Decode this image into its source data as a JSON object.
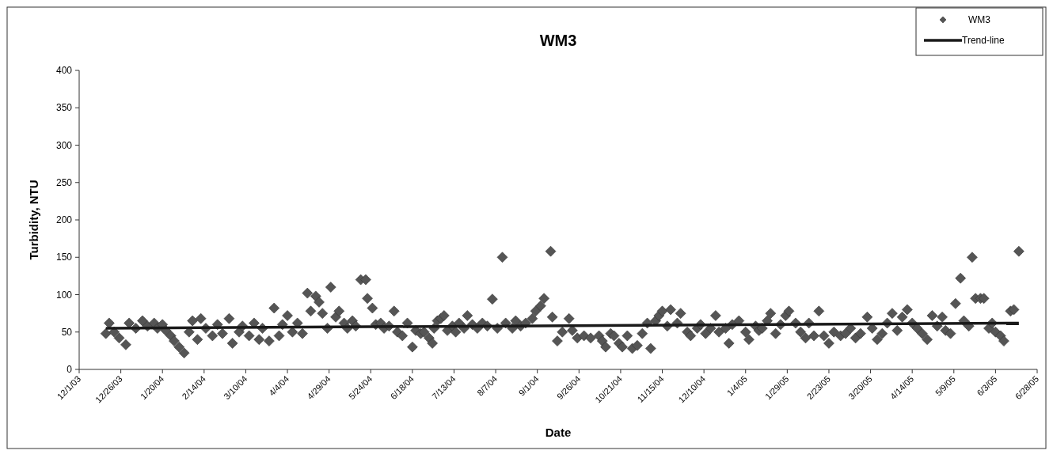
{
  "chart_data": {
    "type": "scatter",
    "title": "WM3",
    "xlabel": "Date",
    "ylabel": "Turbidity, NTU",
    "xlim": [
      "2003-12-01",
      "2005-06-28"
    ],
    "xticks": [
      {
        "value": "2003-12-01",
        "label": "12/1/03"
      },
      {
        "value": "2003-12-26",
        "label": "12/26/03"
      },
      {
        "value": "2004-01-20",
        "label": "1/20/04"
      },
      {
        "value": "2004-02-14",
        "label": "2/14/04"
      },
      {
        "value": "2004-03-10",
        "label": "3/10/04"
      },
      {
        "value": "2004-04-04",
        "label": "4/4/04"
      },
      {
        "value": "2004-04-29",
        "label": "4/29/04"
      },
      {
        "value": "2004-05-24",
        "label": "5/24/04"
      },
      {
        "value": "2004-06-18",
        "label": "6/18/04"
      },
      {
        "value": "2004-07-13",
        "label": "7/13/04"
      },
      {
        "value": "2004-08-07",
        "label": "8/7/04"
      },
      {
        "value": "2004-09-01",
        "label": "9/1/04"
      },
      {
        "value": "2004-09-26",
        "label": "9/26/04"
      },
      {
        "value": "2004-10-21",
        "label": "10/21/04"
      },
      {
        "value": "2004-11-15",
        "label": "11/15/04"
      },
      {
        "value": "2004-12-10",
        "label": "12/10/04"
      },
      {
        "value": "2005-01-04",
        "label": "1/4/05"
      },
      {
        "value": "2005-01-29",
        "label": "1/29/05"
      },
      {
        "value": "2005-02-23",
        "label": "2/23/05"
      },
      {
        "value": "2005-03-20",
        "label": "3/20/05"
      },
      {
        "value": "2005-04-14",
        "label": "4/14/05"
      },
      {
        "value": "2005-05-09",
        "label": "5/9/05"
      },
      {
        "value": "2005-06-03",
        "label": "6/3/05"
      },
      {
        "value": "2005-06-28",
        "label": "6/28/05"
      }
    ],
    "ylim": [
      0,
      400
    ],
    "yticks": [
      0,
      50,
      100,
      150,
      200,
      250,
      300,
      350,
      400
    ],
    "grid": false,
    "legend": "top right",
    "series": [
      {
        "name": "WM3",
        "color": "#555555",
        "marker": "diamond",
        "x": [
          "2003-12-17",
          "2003-12-19",
          "2003-12-22",
          "2003-12-25",
          "2003-12-29",
          "2003-12-31",
          "2004-01-04",
          "2004-01-08",
          "2004-01-11",
          "2004-01-15",
          "2004-01-17",
          "2004-01-20",
          "2004-01-22",
          "2004-01-25",
          "2004-01-27",
          "2004-01-30",
          "2004-02-02",
          "2004-02-05",
          "2004-02-07",
          "2004-02-10",
          "2004-02-12",
          "2004-02-15",
          "2004-02-19",
          "2004-02-22",
          "2004-02-25",
          "2004-02-29",
          "2004-03-02",
          "2004-03-06",
          "2004-03-08",
          "2004-03-12",
          "2004-03-15",
          "2004-03-18",
          "2004-03-20",
          "2004-03-24",
          "2004-03-27",
          "2004-03-30",
          "2004-04-01",
          "2004-04-04",
          "2004-04-07",
          "2004-04-10",
          "2004-04-13",
          "2004-04-16",
          "2004-04-18",
          "2004-04-21",
          "2004-04-23",
          "2004-04-25",
          "2004-04-28",
          "2004-04-30",
          "2004-05-03",
          "2004-05-05",
          "2004-05-08",
          "2004-05-10",
          "2004-05-13",
          "2004-05-15",
          "2004-05-18",
          "2004-05-21",
          "2004-05-22",
          "2004-05-25",
          "2004-05-27",
          "2004-05-30",
          "2004-06-01",
          "2004-06-04",
          "2004-06-07",
          "2004-06-09",
          "2004-06-12",
          "2004-06-15",
          "2004-06-18",
          "2004-06-20",
          "2004-06-23",
          "2004-06-25",
          "2004-06-28",
          "2004-06-30",
          "2004-07-01",
          "2004-07-03",
          "2004-07-05",
          "2004-07-07",
          "2004-07-09",
          "2004-07-12",
          "2004-07-14",
          "2004-07-16",
          "2004-07-19",
          "2004-07-21",
          "2004-07-24",
          "2004-07-27",
          "2004-07-30",
          "2004-08-02",
          "2004-08-05",
          "2004-08-08",
          "2004-08-11",
          "2004-08-13",
          "2004-08-17",
          "2004-08-19",
          "2004-08-22",
          "2004-08-25",
          "2004-08-29",
          "2004-08-31",
          "2004-09-03",
          "2004-09-05",
          "2004-09-09",
          "2004-09-10",
          "2004-09-13",
          "2004-09-16",
          "2004-09-20",
          "2004-09-22",
          "2004-09-25",
          "2004-09-29",
          "2004-10-03",
          "2004-10-08",
          "2004-10-10",
          "2004-10-12",
          "2004-10-15",
          "2004-10-17",
          "2004-10-20",
          "2004-10-22",
          "2004-10-25",
          "2004-10-28",
          "2004-10-31",
          "2004-11-03",
          "2004-11-06",
          "2004-11-08",
          "2004-11-11",
          "2004-11-13",
          "2004-11-15",
          "2004-11-18",
          "2004-11-20",
          "2004-11-24",
          "2004-11-26",
          "2004-11-30",
          "2004-12-02",
          "2004-12-06",
          "2004-12-08",
          "2004-12-11",
          "2004-12-14",
          "2004-12-17",
          "2004-12-19",
          "2004-12-23",
          "2004-12-25",
          "2004-12-27",
          "2004-12-31",
          "2005-01-04",
          "2005-01-06",
          "2005-01-10",
          "2005-01-12",
          "2005-01-14",
          "2005-01-17",
          "2005-01-19",
          "2005-01-22",
          "2005-01-25",
          "2005-01-28",
          "2005-01-30",
          "2005-02-03",
          "2005-02-06",
          "2005-02-09",
          "2005-02-11",
          "2005-02-14",
          "2005-02-17",
          "2005-02-20",
          "2005-02-23",
          "2005-02-26",
          "2005-03-02",
          "2005-03-05",
          "2005-03-08",
          "2005-03-11",
          "2005-03-14",
          "2005-03-18",
          "2005-03-21",
          "2005-03-24",
          "2005-03-27",
          "2005-03-30",
          "2005-04-02",
          "2005-04-05",
          "2005-04-08",
          "2005-04-11",
          "2005-04-14",
          "2005-04-17",
          "2005-04-20",
          "2005-04-23",
          "2005-04-26",
          "2005-04-29",
          "2005-05-02",
          "2005-05-04",
          "2005-05-07",
          "2005-05-10",
          "2005-05-13",
          "2005-05-15",
          "2005-05-18",
          "2005-05-20",
          "2005-05-22",
          "2005-05-25",
          "2005-05-27",
          "2005-05-30",
          "2005-06-01",
          "2005-06-03",
          "2005-06-06",
          "2005-06-08",
          "2005-06-12",
          "2005-06-14",
          "2005-06-17"
        ],
        "values": [
          48,
          62,
          50,
          42,
          33,
          62,
          55,
          65,
          58,
          62,
          55,
          60,
          52,
          45,
          38,
          30,
          22,
          50,
          65,
          40,
          68,
          55,
          45,
          60,
          48,
          68,
          35,
          50,
          58,
          45,
          62,
          40,
          55,
          38,
          82,
          45,
          60,
          72,
          50,
          62,
          48,
          102,
          78,
          98,
          90,
          75,
          55,
          110,
          70,
          78,
          62,
          55,
          65,
          58,
          120,
          120,
          95,
          82,
          60,
          62,
          55,
          58,
          78,
          50,
          45,
          62,
          30,
          52,
          48,
          50,
          42,
          35,
          55,
          65,
          68,
          72,
          52,
          58,
          50,
          62,
          55,
          72,
          60,
          55,
          62,
          58,
          94,
          55,
          150,
          62,
          55,
          65,
          58,
          62,
          68,
          78,
          85,
          95,
          158,
          70,
          38,
          50,
          68,
          52,
          42,
          45,
          42,
          45,
          38,
          30,
          48,
          45,
          35,
          30,
          45,
          28,
          32,
          48,
          62,
          28,
          65,
          72,
          78,
          58,
          80,
          62,
          75,
          50,
          45,
          55,
          60,
          48,
          55,
          72,
          50,
          55,
          35,
          60,
          65,
          50,
          40,
          58,
          52,
          55,
          65,
          75,
          48,
          60,
          72,
          78,
          62,
          50,
          42,
          62,
          45,
          78,
          45,
          35,
          50,
          45,
          48,
          55,
          42,
          48,
          70,
          55,
          40,
          48,
          62,
          75,
          52,
          70,
          80,
          62,
          55,
          48,
          40,
          72,
          58,
          70,
          52,
          48,
          88,
          122,
          65,
          58,
          150,
          95,
          95,
          95,
          55,
          62,
          50,
          45,
          38,
          78,
          80,
          158
        ]
      },
      {
        "name": "Trend-line",
        "type": "line",
        "color": "#1a1a1a",
        "marker": "none",
        "line_style": "solid",
        "x": [
          "2003-12-17",
          "2005-06-17"
        ],
        "values": [
          55,
          62
        ]
      }
    ]
  }
}
